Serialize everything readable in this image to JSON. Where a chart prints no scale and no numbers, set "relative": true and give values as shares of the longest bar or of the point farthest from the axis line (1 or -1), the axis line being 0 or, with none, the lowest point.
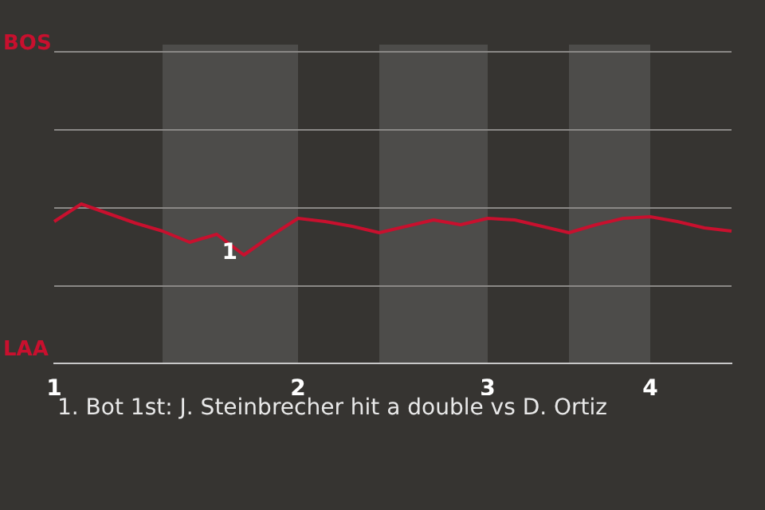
{
  "chart_data": {
    "type": "line",
    "relative": true,
    "categories": [
      "1",
      null,
      null,
      null,
      null,
      null,
      null,
      null,
      null,
      "2",
      null,
      null,
      null,
      null,
      null,
      null,
      "3",
      null,
      null,
      null,
      null,
      null,
      "4",
      null,
      null,
      null
    ],
    "series": [
      {
        "color": "#c8102e",
        "values": [
          0.89,
          1,
          0.94,
          0.88,
          0.83,
          0.76,
          0.81,
          0.68,
          0.8,
          0.91,
          0.89,
          0.86,
          0.82,
          0.86,
          0.9,
          0.87,
          0.91,
          0.9,
          0.86,
          0.82,
          0.87,
          0.91,
          0.92,
          0.89,
          0.85,
          0.83
        ]
      }
    ],
    "ref_lines": [
      {
        "axis": "y",
        "value": 0.49,
        "color": "#8a8886"
      },
      {
        "axis": "y",
        "value": 0.98,
        "color": "#8a8886"
      },
      {
        "axis": "y",
        "value": 1.47,
        "color": "#8a8886"
      },
      {
        "axis": "y",
        "value": 1.96,
        "color": "#8a8886"
      }
    ],
    "marker": "none",
    "line_style": "solid",
    "legend": false,
    "annotations": [
      "BOS",
      "LAA",
      {
        "text": "1",
        "y": 0.68
      },
      "1. Bot 1st: J. Steinbrecher hit a double vs D. Ortiz"
    ]
  }
}
